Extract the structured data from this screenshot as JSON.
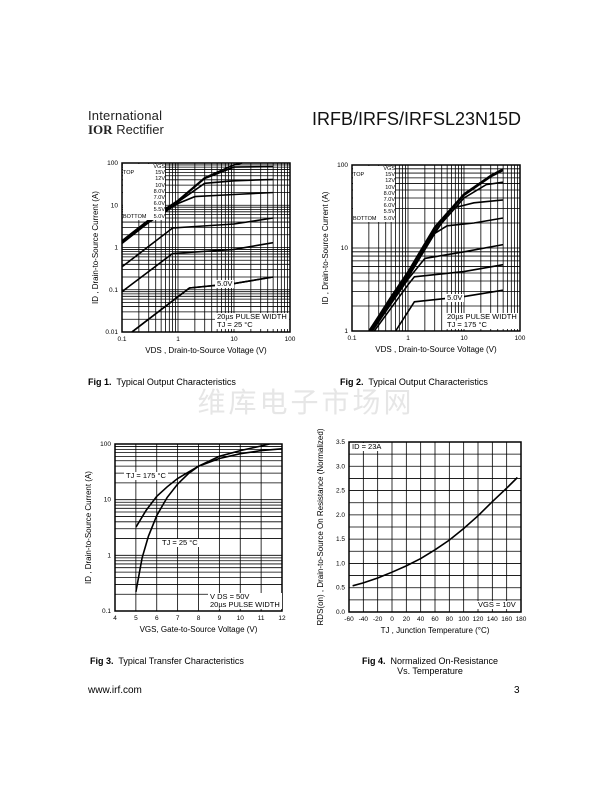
{
  "header": {
    "logo_line1": "International",
    "logo_mark": "IOR",
    "logo_line2": "Rectifier",
    "title": "IRFB/IRFS/IRFSL23N15D"
  },
  "watermark": "维库电子市场网",
  "footer": {
    "url": "www.irf.com",
    "page": "3"
  },
  "legend": {
    "header": "VGS",
    "top": "TOP",
    "bottom": "BOTTOM",
    "values": [
      "15V",
      "12V",
      "10V",
      "8.0V",
      "7.0V",
      "6.0V",
      "5.5V",
      "5.0V"
    ]
  },
  "chart_data": [
    {
      "id": "fig1",
      "type": "line",
      "xlog": true,
      "ylog": true,
      "xlim": [
        0.1,
        100
      ],
      "ylim": [
        0.01,
        100
      ],
      "xticks": [
        "0.1",
        "1",
        "10",
        "100"
      ],
      "yticks": [
        "0.01",
        "0.1",
        "1",
        "10",
        "100"
      ],
      "xlabel": "VDS , Drain-to-Source Voltage (V)",
      "ylabel": "ID , Drain-to-Source Current (A)",
      "annotations": [
        "5.0V",
        "20µs PULSE WIDTH",
        "TJ = 25 °C"
      ],
      "caption_num": "Fig 1.",
      "caption": "Typical Output Characteristics",
      "series": [
        {
          "name": "15V",
          "points": [
            [
              0.1,
              1.45
            ],
            [
              0.3,
              4.5
            ],
            [
              1,
              13
            ],
            [
              3,
              45
            ],
            [
              10,
              90
            ],
            [
              14,
              100
            ]
          ]
        },
        {
          "name": "12V",
          "points": [
            [
              0.1,
              1.4
            ],
            [
              0.3,
              4.3
            ],
            [
              1,
              12.5
            ],
            [
              3,
              43
            ],
            [
              10,
              80
            ],
            [
              50,
              82
            ]
          ]
        },
        {
          "name": "10V",
          "points": [
            [
              0.1,
              1.35
            ],
            [
              0.3,
              4.1
            ],
            [
              1,
              12
            ],
            [
              3,
              33
            ],
            [
              10,
              38
            ],
            [
              50,
              41
            ]
          ]
        },
        {
          "name": "8.0V",
          "points": [
            [
              0.1,
              1.25
            ],
            [
              0.3,
              3.9
            ],
            [
              1,
              11
            ],
            [
              2,
              16
            ],
            [
              10,
              18
            ],
            [
              50,
              20
            ]
          ]
        },
        {
          "name": "7.0V",
          "points": [
            [
              0.1,
              0.35
            ],
            [
              0.8,
              2.9
            ],
            [
              10,
              3.6
            ],
            [
              50,
              5
            ]
          ]
        },
        {
          "name": "6.0V",
          "points": [
            [
              0.1,
              0.09
            ],
            [
              0.8,
              0.72
            ],
            [
              10,
              0.9
            ],
            [
              50,
              1.3
            ]
          ]
        },
        {
          "name": "5.5V",
          "points": [
            [
              0.15,
              0.01
            ],
            [
              1.6,
              0.11
            ],
            [
              10,
              0.14
            ],
            [
              50,
              0.2
            ]
          ]
        },
        {
          "name": "5.0V",
          "points": [
            [
              0.15,
              0.01
            ],
            [
              1.6,
              0.11
            ],
            [
              10,
              0.14
            ],
            [
              50,
              0.2
            ]
          ]
        }
      ]
    },
    {
      "id": "fig2",
      "type": "line",
      "xlog": true,
      "ylog": true,
      "xlim": [
        0.1,
        100
      ],
      "ylim": [
        1,
        100
      ],
      "xticks": [
        "0.1",
        "1",
        "10",
        "100"
      ],
      "yticks": [
        "1",
        "10",
        "100"
      ],
      "xlabel": "VDS , Drain-to-Source Voltage (V)",
      "ylabel": "ID , Drain-to-Source Current (A)",
      "annotations": [
        "5.0V",
        "20µs PULSE WIDTH",
        "TJ = 175 °C"
      ],
      "caption_num": "Fig 2.",
      "caption": "Typical Output Characteristics",
      "series": [
        {
          "name": "15V",
          "points": [
            [
              0.2,
              1
            ],
            [
              0.5,
              2.6
            ],
            [
              1,
              5.2
            ],
            [
              3,
              18
            ],
            [
              10,
              45
            ],
            [
              30,
              75
            ],
            [
              50,
              90
            ]
          ]
        },
        {
          "name": "12V",
          "points": [
            [
              0.2,
              1
            ],
            [
              0.5,
              2.5
            ],
            [
              1,
              5
            ],
            [
              3,
              17
            ],
            [
              10,
              43
            ],
            [
              30,
              72
            ],
            [
              50,
              86
            ]
          ]
        },
        {
          "name": "10V",
          "points": [
            [
              0.2,
              1
            ],
            [
              0.5,
              2.4
            ],
            [
              1,
              4.8
            ],
            [
              3,
              16
            ],
            [
              10,
              40
            ],
            [
              25,
              58
            ],
            [
              50,
              62
            ]
          ]
        },
        {
          "name": "8.0V",
          "points": [
            [
              0.21,
              1
            ],
            [
              0.5,
              2.3
            ],
            [
              1,
              4.6
            ],
            [
              3,
              15
            ],
            [
              6,
              30
            ],
            [
              15,
              35
            ],
            [
              50,
              38
            ]
          ]
        },
        {
          "name": "7.0V",
          "points": [
            [
              0.22,
              1
            ],
            [
              0.5,
              2.2
            ],
            [
              1,
              4.4
            ],
            [
              3,
              15
            ],
            [
              5,
              18.5
            ],
            [
              15,
              20
            ],
            [
              50,
              23
            ]
          ]
        },
        {
          "name": "6.0V",
          "points": [
            [
              0.23,
              1
            ],
            [
              1,
              4.2
            ],
            [
              2,
              7.5
            ],
            [
              10,
              9
            ],
            [
              50,
              11
            ]
          ]
        },
        {
          "name": "5.5V",
          "points": [
            [
              0.25,
              1
            ],
            [
              1,
              3.6
            ],
            [
              1.3,
              4.5
            ],
            [
              10,
              5.2
            ],
            [
              50,
              6.3
            ]
          ]
        },
        {
          "name": "5.0V",
          "points": [
            [
              0.6,
              1
            ],
            [
              1.3,
              2.25
            ],
            [
              10,
              2.6
            ],
            [
              50,
              3.1
            ]
          ]
        }
      ]
    },
    {
      "id": "fig3",
      "type": "line",
      "xlog": false,
      "ylog": true,
      "xlim": [
        4,
        12
      ],
      "ylim": [
        0.1,
        100
      ],
      "xticks": [
        "4",
        "5",
        "6",
        "7",
        "8",
        "9",
        "10",
        "11",
        "12"
      ],
      "yticks": [
        "0.1",
        "1",
        "10",
        "100"
      ],
      "xlabel": "VGS, Gate-to-Source Voltage (V)",
      "ylabel": "ID , Drain-to-Source Current (A)",
      "annotations": [
        "TJ = 175 °C",
        "TJ = 25 °C",
        "V DS = 50V",
        "20µs PULSE WIDTH"
      ],
      "caption_num": "Fig 3.",
      "caption": "Typical Transfer Characteristics",
      "series": [
        {
          "name": "TJ = 175°C",
          "points": [
            [
              5,
              3.2
            ],
            [
              5.5,
              6.5
            ],
            [
              6,
              11.5
            ],
            [
              6.5,
              17
            ],
            [
              7,
              24
            ],
            [
              7.5,
              31
            ],
            [
              8,
              40
            ],
            [
              9,
              55
            ],
            [
              10,
              67
            ],
            [
              11,
              76
            ],
            [
              12,
              82
            ]
          ]
        },
        {
          "name": "TJ = 25°C",
          "points": [
            [
              5,
              0.22
            ],
            [
              5.3,
              0.9
            ],
            [
              5.6,
              2.2
            ],
            [
              6,
              5.2
            ],
            [
              6.5,
              11
            ],
            [
              7,
              19
            ],
            [
              7.5,
              29
            ],
            [
              8,
              40
            ],
            [
              9,
              60
            ],
            [
              10,
              76
            ],
            [
              11,
              92
            ],
            [
              11.4,
              100
            ]
          ]
        }
      ]
    },
    {
      "id": "fig4",
      "type": "line",
      "xlog": false,
      "ylog": false,
      "xlim": [
        -60,
        180
      ],
      "ylim": [
        0,
        3.5
      ],
      "xticks": [
        "-60",
        "-40",
        "-20",
        "0",
        "20",
        "40",
        "60",
        "80",
        "100",
        "120",
        "140",
        "160",
        "180"
      ],
      "yticks": [
        "0.0",
        "0.5",
        "1.0",
        "1.5",
        "2.0",
        "2.5",
        "3.0",
        "3.5"
      ],
      "xlabel": "TJ , Junction Temperature (°C)",
      "ylabel": "RDS(on) , Drain-to-Source On Resistance (Normalized)",
      "annotations": [
        "ID = 23A",
        "VGS = 10V"
      ],
      "caption_num": "Fig 4.",
      "caption": "Normalized On-Resistance",
      "caption2": "Vs. Temperature",
      "series": [
        {
          "name": "RDS(on)",
          "points": [
            [
              -55,
              0.54
            ],
            [
              -40,
              0.6
            ],
            [
              -20,
              0.7
            ],
            [
              0,
              0.82
            ],
            [
              20,
              0.95
            ],
            [
              40,
              1.1
            ],
            [
              60,
              1.28
            ],
            [
              80,
              1.48
            ],
            [
              100,
              1.72
            ],
            [
              120,
              1.98
            ],
            [
              140,
              2.27
            ],
            [
              160,
              2.55
            ],
            [
              175,
              2.77
            ]
          ]
        }
      ]
    }
  ]
}
